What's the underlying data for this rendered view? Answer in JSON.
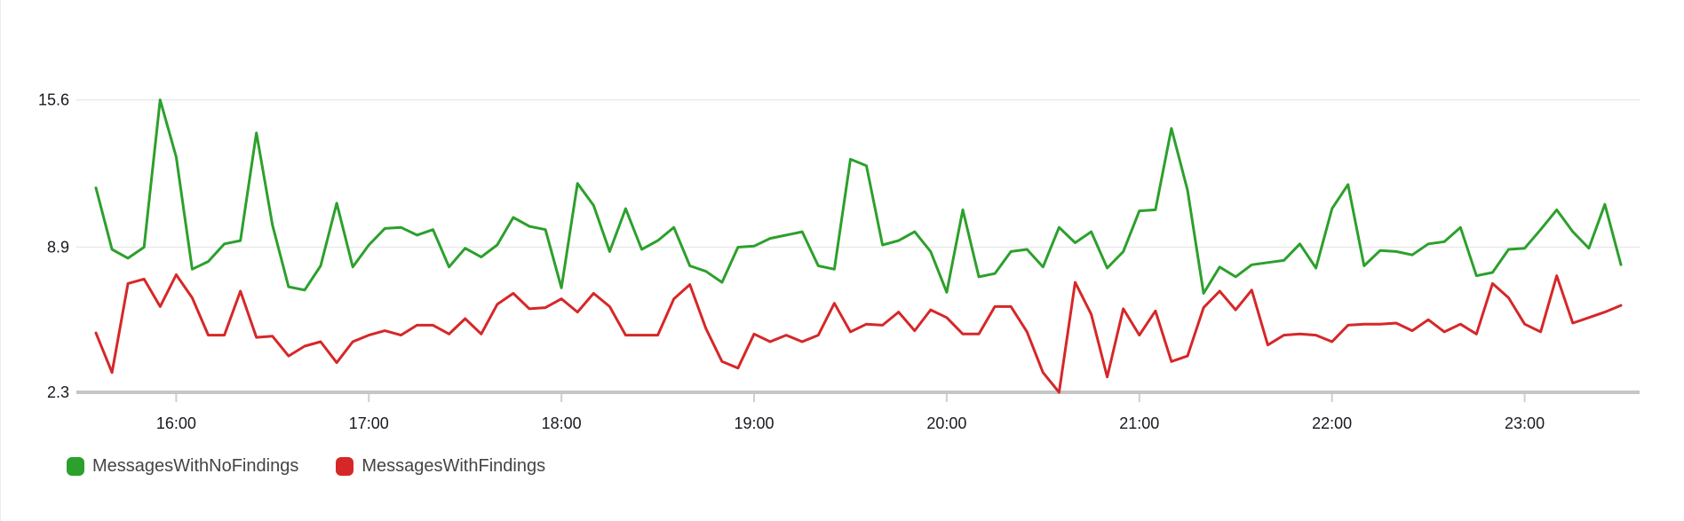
{
  "chart": {
    "legend_items": [
      {
        "label": "MessagesWithNoFindings",
        "swatch": "green-rounded-square"
      },
      {
        "label": "MessagesWithFindings",
        "swatch": "red-rounded-square"
      }
    ],
    "colors": {
      "green_series": "#2ca02c",
      "red_series": "#d62728",
      "gridline": "#e9e9e9",
      "axis_line": "#c6c6c6",
      "tick_mark": "#cfcfcf",
      "axis_label_text": "#16191f",
      "legend_text": "#444444"
    }
  },
  "chart_data": {
    "type": "line",
    "title": "",
    "xlabel": "",
    "ylabel": "",
    "grid": "horizontal-gridlines-at-yticks",
    "legend_position": "bottom-left",
    "x_axis": {
      "tick_labels": [
        "16:00",
        "17:00",
        "18:00",
        "19:00",
        "20:00",
        "21:00",
        "22:00",
        "23:00"
      ],
      "start_time": "15:35",
      "end_time": "23:30",
      "interval_minutes": 5,
      "points_per_series": 96
    },
    "y_axis": {
      "tick_labels": [
        "15.6",
        "8.9",
        "2.3"
      ],
      "ylim": [
        2.3,
        15.6
      ]
    },
    "series": [
      {
        "name": "MessagesWithNoFindings",
        "color": "#2ca02c",
        "values": [
          11.6,
          8.8,
          8.4,
          8.9,
          15.6,
          13.0,
          7.9,
          8.25,
          9.05,
          9.2,
          14.1,
          9.9,
          7.1,
          6.95,
          8.05,
          10.9,
          8.0,
          9.0,
          9.75,
          9.8,
          9.45,
          9.7,
          8.0,
          8.85,
          8.45,
          9.0,
          10.25,
          9.85,
          9.7,
          7.05,
          11.8,
          10.8,
          8.7,
          10.65,
          8.8,
          9.2,
          9.8,
          8.05,
          7.8,
          7.3,
          8.9,
          8.95,
          9.3,
          9.45,
          9.6,
          8.05,
          7.9,
          12.9,
          12.6,
          9.0,
          9.2,
          9.6,
          8.7,
          6.85,
          10.6,
          7.55,
          7.7,
          8.7,
          8.8,
          8.0,
          9.8,
          9.1,
          9.6,
          7.95,
          8.7,
          10.55,
          10.6,
          14.3,
          11.5,
          6.8,
          8.0,
          7.55,
          8.1,
          8.2,
          8.3,
          9.05,
          7.95,
          10.65,
          11.75,
          8.05,
          8.75,
          8.7,
          8.55,
          9.05,
          9.15,
          9.8,
          7.6,
          7.75,
          8.8,
          8.85,
          9.7,
          10.6,
          9.6,
          8.85,
          10.85,
          8.1
        ]
      },
      {
        "name": "MessagesWithFindings",
        "color": "#d62728",
        "values": [
          5.0,
          3.2,
          7.25,
          7.45,
          6.2,
          7.65,
          6.6,
          4.9,
          4.9,
          6.9,
          4.8,
          4.85,
          3.95,
          4.4,
          4.6,
          3.65,
          4.6,
          4.9,
          5.1,
          4.9,
          5.35,
          5.35,
          4.95,
          5.65,
          4.95,
          6.3,
          6.8,
          6.1,
          6.15,
          6.55,
          5.95,
          6.8,
          6.2,
          4.9,
          4.9,
          4.9,
          6.55,
          7.2,
          5.2,
          3.7,
          3.4,
          4.95,
          4.6,
          4.9,
          4.6,
          4.9,
          6.35,
          5.05,
          5.4,
          5.35,
          5.95,
          5.1,
          6.05,
          5.7,
          4.95,
          4.95,
          6.2,
          6.2,
          5.05,
          3.2,
          2.3,
          7.3,
          5.85,
          3.0,
          6.1,
          4.9,
          6.0,
          3.7,
          3.95,
          6.15,
          6.9,
          6.05,
          6.95,
          4.45,
          4.9,
          4.95,
          4.9,
          4.6,
          5.35,
          5.4,
          5.4,
          5.45,
          5.1,
          5.6,
          5.05,
          5.4,
          4.95,
          7.25,
          6.6,
          5.4,
          5.05,
          7.6,
          5.45,
          5.7,
          5.95,
          6.25
        ]
      }
    ]
  }
}
